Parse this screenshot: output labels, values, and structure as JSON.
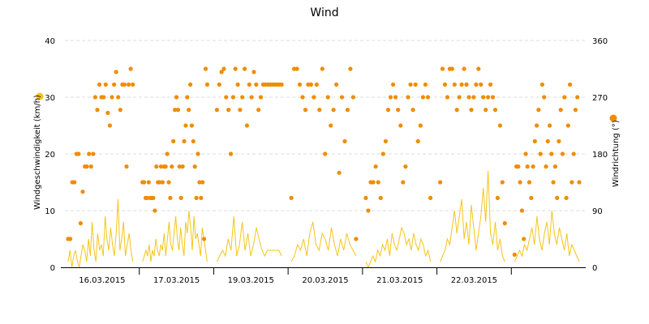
{
  "chart_data": {
    "type": "line",
    "title": "Wind",
    "x_labels": [
      "16.03.2015",
      "17.03.2015",
      "19.03.2015",
      "20.03.2015",
      "21.03.2015",
      "22.03.2015"
    ],
    "y_left": {
      "label": "Windgeschwindigkeit (km/h)",
      "ticks": [
        "0",
        "10",
        "20",
        "30",
        "40"
      ],
      "range": [
        0,
        40
      ]
    },
    "y_right": {
      "label": "Windrichtung (°)",
      "ticks": [
        "0",
        "90",
        "180",
        "270",
        "360"
      ],
      "range": [
        0,
        360
      ]
    },
    "grid": true,
    "legend_placement": "sides",
    "colors": {
      "speed": "#f5c518",
      "direction": "#f08c00"
    },
    "days": [
      {
        "label": "16.03.2015",
        "speed": [
          1,
          3,
          0,
          2,
          3,
          1,
          0,
          2,
          4,
          3,
          1,
          5,
          2,
          8,
          3,
          1,
          6,
          3,
          4,
          2,
          9,
          5,
          3,
          7,
          4,
          2,
          6,
          12,
          3,
          5,
          8,
          2,
          4,
          6,
          3,
          1
        ],
        "direction": [
          45,
          45,
          135,
          135,
          180,
          180,
          70,
          120,
          160,
          160,
          180,
          160,
          180,
          270,
          250,
          290,
          270,
          270,
          290,
          245,
          225,
          270,
          290,
          310,
          270,
          250,
          290,
          290,
          160,
          290,
          315,
          290
        ]
      },
      {
        "label": "17.03.2015",
        "speed": [
          1,
          2,
          3,
          2,
          4,
          1,
          3,
          2,
          5,
          3,
          2,
          4,
          3,
          6,
          2,
          5,
          8,
          4,
          3,
          6,
          9,
          5,
          3,
          7,
          4,
          2,
          8,
          6,
          10,
          7,
          3,
          9,
          5,
          6,
          4,
          2,
          7,
          5,
          3,
          1
        ],
        "direction": [
          135,
          135,
          110,
          110,
          135,
          110,
          110,
          110,
          90,
          160,
          135,
          135,
          160,
          135,
          160,
          160,
          180,
          135,
          110,
          160,
          200,
          250,
          270,
          250,
          160,
          110,
          160,
          200,
          225,
          270,
          250,
          290,
          225,
          200,
          160,
          110,
          180,
          135,
          110,
          135,
          45,
          315,
          290
        ]
      },
      {
        "label": "19.03.2015",
        "speed": [
          1,
          2,
          3,
          2,
          5,
          3,
          9,
          2,
          4,
          8,
          3,
          6,
          2,
          4,
          7,
          5,
          3,
          2,
          3,
          3,
          3,
          3,
          3,
          2
        ],
        "direction": [
          250,
          290,
          310,
          315,
          270,
          250,
          180,
          270,
          315,
          290,
          250,
          270,
          315,
          225,
          290,
          270,
          310,
          290,
          250,
          270,
          290,
          290,
          290,
          290,
          290,
          290,
          290,
          290,
          290
        ]
      },
      {
        "label": "20.03.2015",
        "speed": [
          1,
          2,
          4,
          3,
          5,
          2,
          6,
          8,
          4,
          3,
          6,
          5,
          3,
          7,
          4,
          2,
          5,
          3,
          6,
          4,
          3,
          2
        ],
        "direction": [
          110,
          315,
          315,
          290,
          270,
          250,
          290,
          290,
          270,
          290,
          250,
          315,
          180,
          270,
          225,
          250,
          290,
          150,
          270,
          200,
          250,
          315,
          270,
          45
        ]
      },
      {
        "label": "21.03.2015",
        "speed": [
          1,
          0,
          1,
          2,
          1,
          3,
          2,
          4,
          3,
          5,
          2,
          6,
          4,
          3,
          5,
          7,
          6,
          4,
          5,
          3,
          6,
          4,
          3,
          5,
          4,
          2,
          3,
          1
        ],
        "direction": [
          110,
          90,
          135,
          135,
          160,
          135,
          110,
          180,
          200,
          250,
          270,
          290,
          270,
          250,
          225,
          135,
          160,
          270,
          290,
          250,
          290,
          200,
          225,
          270,
          290,
          270,
          110
        ]
      },
      {
        "label": "22.03.2015",
        "speed": [
          1,
          2,
          3,
          5,
          4,
          7,
          10,
          6,
          9,
          12,
          5,
          8,
          4,
          11,
          7,
          3,
          6,
          9,
          14,
          8,
          17,
          6,
          4,
          8,
          3,
          5,
          2,
          1
        ],
        "direction": [
          135,
          315,
          290,
          270,
          315,
          315,
          290,
          250,
          270,
          290,
          315,
          290,
          270,
          250,
          270,
          290,
          315,
          290,
          270,
          250,
          270,
          290,
          270,
          250,
          110,
          225,
          135,
          70
        ]
      },
      {
        "label": "",
        "speed": [
          1,
          2,
          3,
          2,
          4,
          3,
          5,
          7,
          4,
          9,
          5,
          3,
          6,
          8,
          4,
          10,
          6,
          4,
          7,
          5,
          3,
          6,
          2,
          4,
          3,
          2,
          1
        ],
        "direction": [
          20,
          160,
          160,
          135,
          90,
          45,
          180,
          160,
          135,
          110,
          160,
          200,
          225,
          250,
          180,
          290,
          270,
          160,
          200,
          225,
          180,
          135,
          160,
          110,
          200,
          250,
          180,
          270,
          110,
          225,
          290,
          135,
          180,
          250,
          270,
          135
        ]
      }
    ]
  }
}
